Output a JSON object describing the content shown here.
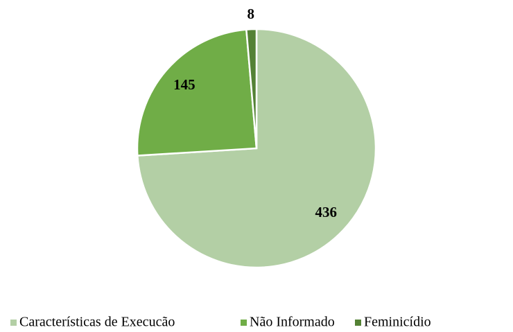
{
  "chart_data": {
    "type": "pie",
    "categories": [
      "Características de Execucão",
      "Não Informado",
      "Feminicídio"
    ],
    "values": [
      436,
      145,
      8
    ],
    "colors": [
      "#b3cfa5",
      "#70ad47",
      "#548235"
    ],
    "legend": "bottom"
  }
}
